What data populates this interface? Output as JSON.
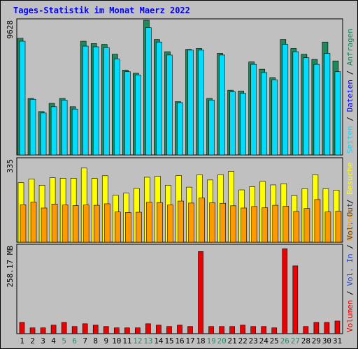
{
  "chart_data": {
    "type": "bar",
    "title": "Tages-Statistik im Monat Maerz 2022",
    "x": [
      "1",
      "2",
      "3",
      "4",
      "5",
      "6",
      "7",
      "8",
      "9",
      "10",
      "11",
      "12",
      "13",
      "14",
      "15",
      "16",
      "17",
      "18",
      "19",
      "20",
      "21",
      "22",
      "23",
      "24",
      "25",
      "26",
      "27",
      "28",
      "29",
      "30",
      "31"
    ],
    "weekend_days": [
      "5",
      "6",
      "12",
      "13",
      "19",
      "20",
      "26",
      "27"
    ],
    "colors": {
      "anfragen": "#1e8a5c",
      "dateien": "#00ddff",
      "seiten": "#00ddff",
      "besuche": "#ffff00",
      "rechner": "#ff9900",
      "volumen": "#ee0000",
      "weekday_label": "#000000",
      "weekend_label": "#2b8a6a",
      "title": "#0000ff",
      "panel_bg": "#c0c0c0"
    },
    "panels": [
      {
        "ymax_label": "9628",
        "ymax": 9628,
        "series": [
          {
            "name": "Anfragen",
            "values": [
              8340,
              4040,
              3100,
              3690,
              4040,
              3450,
              8130,
              7960,
              7900,
              7200,
              6070,
              5840,
              9628,
              8250,
              7380,
              3810,
              7550,
              7610,
              4040,
              7260,
              4630,
              4570,
              6650,
              6130,
              5530,
              8250,
              7610,
              7200,
              6830,
              8070,
              6720
            ]
          },
          {
            "name": "Dateien",
            "values": [
              8130,
              3980,
              3000,
              3450,
              3920,
              3280,
              7780,
              7730,
              7670,
              6860,
              5950,
              5720,
              9100,
              8070,
              7140,
              3740,
              7490,
              7490,
              3920,
              7140,
              4510,
              4400,
              6480,
              5890,
              5370,
              7900,
              7380,
              6950,
              6480,
              7260,
              5950
            ]
          },
          {
            "name": "Seiten",
            "values": [
              8130,
              3980,
              3000,
              3450,
              3920,
              3280,
              7780,
              7730,
              7670,
              6860,
              5950,
              5720,
              9100,
              8070,
              7140,
              3740,
              7490,
              7490,
              3920,
              7140,
              4510,
              4400,
              6480,
              5890,
              5370,
              7900,
              7380,
              6950,
              6480,
              7260,
              5950
            ]
          }
        ]
      },
      {
        "ymax_label": "335",
        "ymax": 335,
        "series": [
          {
            "name": "Besuche",
            "values": [
              240,
              255,
              230,
              260,
              258,
              258,
              299,
              257,
              268,
              189,
              198,
              217,
              262,
              266,
              230,
              269,
              222,
              272,
              251,
              272,
              286,
              211,
              224,
              245,
              231,
              236,
              188,
              216,
              272,
              216,
              210
            ]
          },
          {
            "name": "Rechner",
            "values": [
              151,
              162,
              138,
              154,
              150,
              148,
              150,
              149,
              155,
              122,
              120,
              121,
              161,
              160,
              150,
              166,
              158,
              178,
              159,
              157,
              147,
              138,
              144,
              139,
              149,
              145,
              124,
              136,
              172,
              122,
              125
            ]
          }
        ]
      },
      {
        "ymax_label": "258.17 MB",
        "ymax": 258.17,
        "series": [
          {
            "name": "Volumen",
            "values": [
              33,
              17,
              17,
              25,
              33,
              21,
              29,
              25,
              21,
              17,
              17,
              17,
              29,
              25,
              21,
              25,
              21,
              241,
              21,
              21,
              21,
              25,
              21,
              21,
              17,
              249,
              199,
              21,
              33,
              33,
              37
            ]
          }
        ]
      }
    ],
    "right_labels": [
      [
        "Anfragen",
        "Dateien",
        "Seiten"
      ],
      [
        "Besuche",
        "Rechner"
      ],
      [
        "Vol. Out",
        "Vol. In",
        "Volumen"
      ]
    ],
    "label_separator": " / "
  }
}
